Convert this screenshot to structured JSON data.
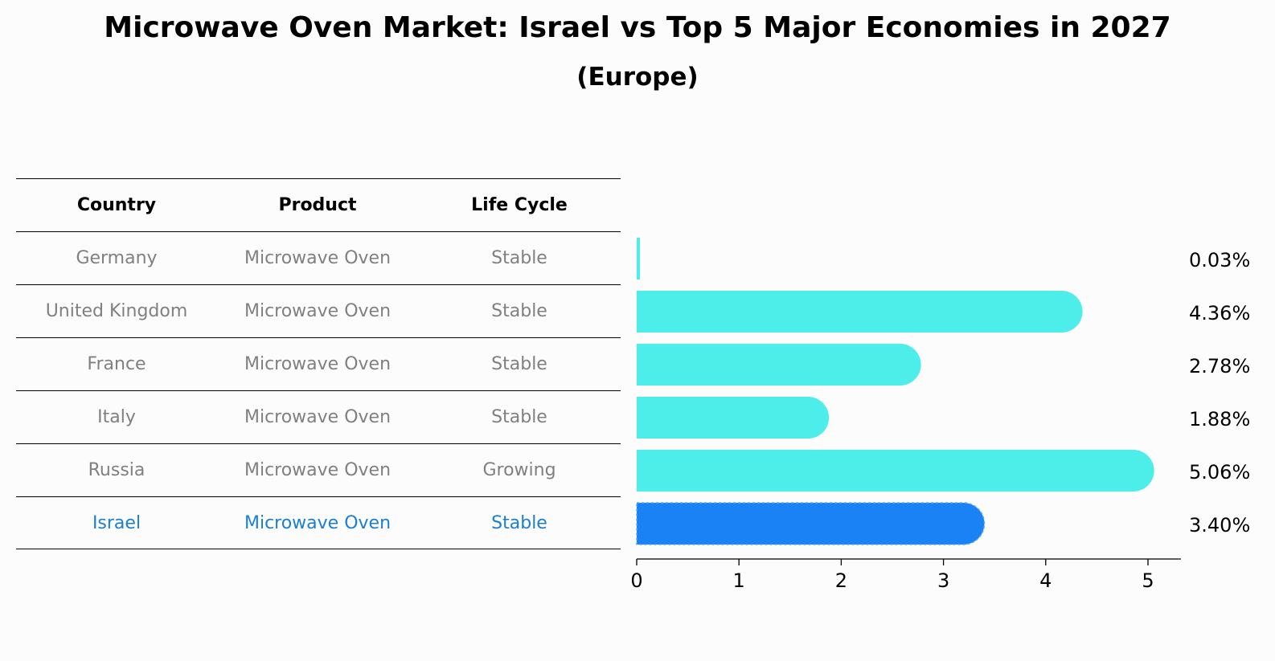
{
  "title": "Microwave Oven Market: Israel vs Top 5 Major Economies in 2027",
  "subtitle": "(Europe)",
  "table": {
    "headers": [
      "Country",
      "Product",
      "Life Cycle"
    ],
    "rows": [
      {
        "country": "Germany",
        "product": "Microwave Oven",
        "life_cycle": "Stable"
      },
      {
        "country": "United Kingdom",
        "product": "Microwave Oven",
        "life_cycle": "Stable"
      },
      {
        "country": "France",
        "product": "Microwave Oven",
        "life_cycle": "Stable"
      },
      {
        "country": "Italy",
        "product": "Microwave Oven",
        "life_cycle": "Stable"
      },
      {
        "country": "Russia",
        "product": "Microwave Oven",
        "life_cycle": "Growing"
      },
      {
        "country": "Israel",
        "product": "Microwave Oven",
        "life_cycle": "Stable"
      }
    ]
  },
  "colors": {
    "bar": "#4deeea",
    "highlight_bar": "#1a82f5",
    "highlight_text": "#1a7fd4",
    "muted_text": "#808080"
  },
  "chart_data": {
    "type": "bar",
    "orientation": "horizontal",
    "categories": [
      "Germany",
      "United Kingdom",
      "France",
      "Italy",
      "Russia",
      "Israel"
    ],
    "values": [
      0.03,
      4.36,
      2.78,
      1.88,
      5.06,
      3.4
    ],
    "value_labels": [
      "0.03%",
      "4.36%",
      "2.78%",
      "1.88%",
      "5.06%",
      "3.40%"
    ],
    "highlight_index": 5,
    "xlim": [
      0,
      5.3
    ],
    "xticks": [
      0,
      1,
      2,
      3,
      4,
      5
    ],
    "xtick_labels": [
      "0",
      "1",
      "2",
      "3",
      "4",
      "5"
    ],
    "grid": false
  }
}
